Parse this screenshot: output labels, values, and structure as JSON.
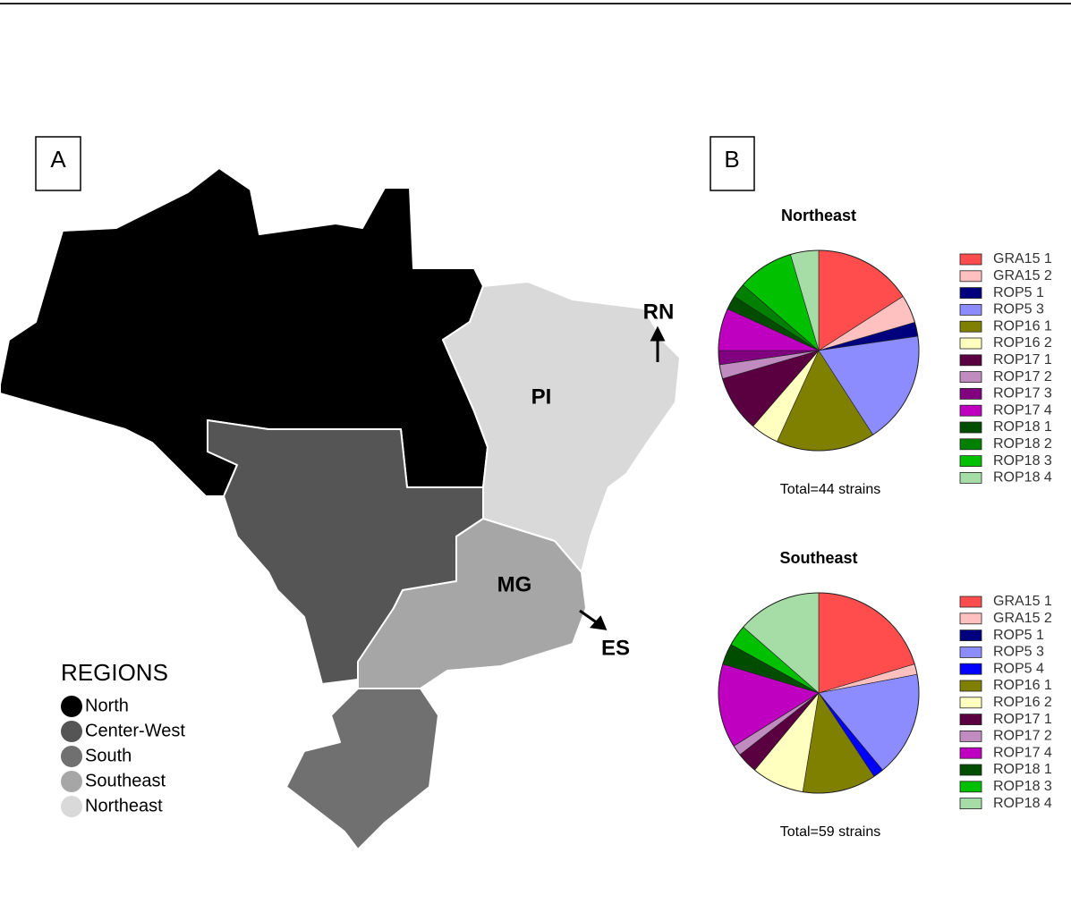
{
  "panel_a": {
    "label": "A",
    "legend_title": "REGIONS",
    "regions": [
      "North",
      "Center-West",
      "South",
      "Southeast",
      "Northeast"
    ],
    "region_colors": [
      "#000000",
      "#555555",
      "#707070",
      "#a6a6a6",
      "#d9d9d9"
    ],
    "state_labels": [
      "PI",
      "RN",
      "MG",
      "ES"
    ]
  },
  "panel_b": {
    "label": "B"
  },
  "chart_data": [
    {
      "type": "pie",
      "title": "Northeast",
      "note": "Total=44 strains",
      "categories": [
        "GRA15 1",
        "GRA15 2",
        "ROP5 1",
        "ROP5 3",
        "ROP16 1",
        "ROP16 2",
        "ROP17 1",
        "ROP17 2",
        "ROP17 3",
        "ROP17 4",
        "ROP18 1",
        "ROP18 2",
        "ROP18 3",
        "ROP18 4"
      ],
      "values": [
        7,
        2,
        1,
        8,
        7,
        2,
        4,
        1,
        1,
        3,
        1,
        1,
        4,
        2
      ],
      "colors": [
        "#ff4d4d",
        "#ffc0c0",
        "#00007f",
        "#8c8cff",
        "#7f7f00",
        "#ffffc0",
        "#5a0040",
        "#c08cc0",
        "#800080",
        "#c000c0",
        "#004d00",
        "#008000",
        "#00c000",
        "#a6dca6"
      ]
    },
    {
      "type": "pie",
      "title": "Southeast",
      "note": "Total=59 strains",
      "categories": [
        "GRA15 1",
        "GRA15 2",
        "ROP5 1",
        "ROP5 3",
        "ROP5 4",
        "ROP16 1",
        "ROP16 2",
        "ROP17 1",
        "ROP17 2",
        "ROP17 4",
        "ROP18 1",
        "ROP18 3",
        "ROP18 4"
      ],
      "values": [
        12,
        1,
        0,
        10,
        1,
        7,
        5,
        2,
        1,
        8,
        2,
        2,
        8
      ],
      "colors": [
        "#ff4d4d",
        "#ffc0c0",
        "#00007f",
        "#8c8cff",
        "#0000ff",
        "#7f7f00",
        "#ffffc0",
        "#5a0040",
        "#c08cc0",
        "#c000c0",
        "#004d00",
        "#00c000",
        "#a6dca6"
      ]
    }
  ]
}
